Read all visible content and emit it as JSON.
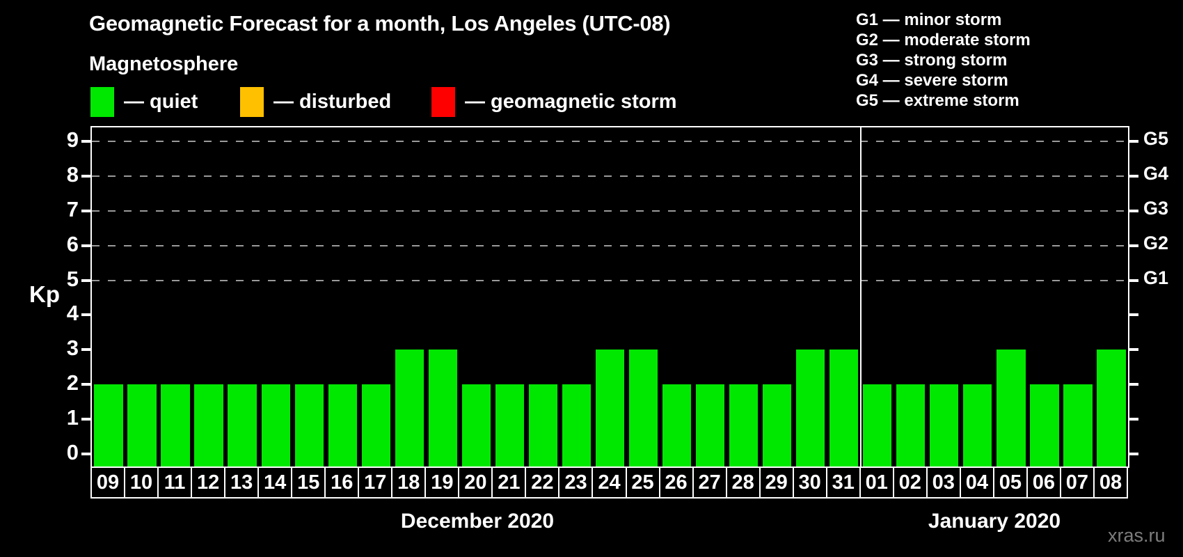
{
  "header": {
    "title": "Geomagnetic Forecast for a month, Los Angeles (UTC-08)"
  },
  "legend": {
    "heading": "Magnetosphere",
    "items": [
      {
        "name": "quiet",
        "label": "— quiet",
        "color": "#00e800"
      },
      {
        "name": "disturbed",
        "label": "— disturbed",
        "color": "#ffc000"
      },
      {
        "name": "storm",
        "label": "— geomagnetic storm",
        "color": "#ff0000"
      }
    ]
  },
  "g_scale_legend": [
    "G1 — minor storm",
    "G2 — moderate storm",
    "G3 — strong storm",
    "G4 — severe storm",
    "G5 — extreme storm"
  ],
  "watermark": "xras.ru",
  "chart_data": {
    "type": "bar",
    "title": "Geomagnetic Forecast for a month, Los Angeles (UTC-08)",
    "ylabel": "Kp",
    "y_ticks": [
      0,
      1,
      2,
      3,
      4,
      5,
      6,
      7,
      8,
      9
    ],
    "ylim": [
      -0.36,
      9.4
    ],
    "grid": "dashed horizontal lines at Kp 5-9 only",
    "grid_levels_kp": [
      5,
      6,
      7,
      8,
      9
    ],
    "right_axis": [
      {
        "label": "G1",
        "kp": 5
      },
      {
        "label": "G2",
        "kp": 6
      },
      {
        "label": "G3",
        "kp": 7
      },
      {
        "label": "G4",
        "kp": 8
      },
      {
        "label": "G5",
        "kp": 9
      }
    ],
    "bar_color": "#00e800",
    "months": [
      {
        "label": "December 2020",
        "days": [
          "09",
          "10",
          "11",
          "12",
          "13",
          "14",
          "15",
          "16",
          "17",
          "18",
          "19",
          "20",
          "21",
          "22",
          "23",
          "24",
          "25",
          "26",
          "27",
          "28",
          "29",
          "30",
          "31"
        ],
        "values": [
          2,
          2,
          2,
          2,
          2,
          2,
          2,
          2,
          2,
          3,
          3,
          2,
          2,
          2,
          2,
          3,
          3,
          2,
          2,
          2,
          2,
          3,
          3
        ]
      },
      {
        "label": "January 2020",
        "days": [
          "01",
          "02",
          "03",
          "04",
          "05",
          "06",
          "07",
          "08"
        ],
        "values": [
          2,
          2,
          2,
          2,
          3,
          2,
          2,
          3
        ]
      }
    ]
  }
}
